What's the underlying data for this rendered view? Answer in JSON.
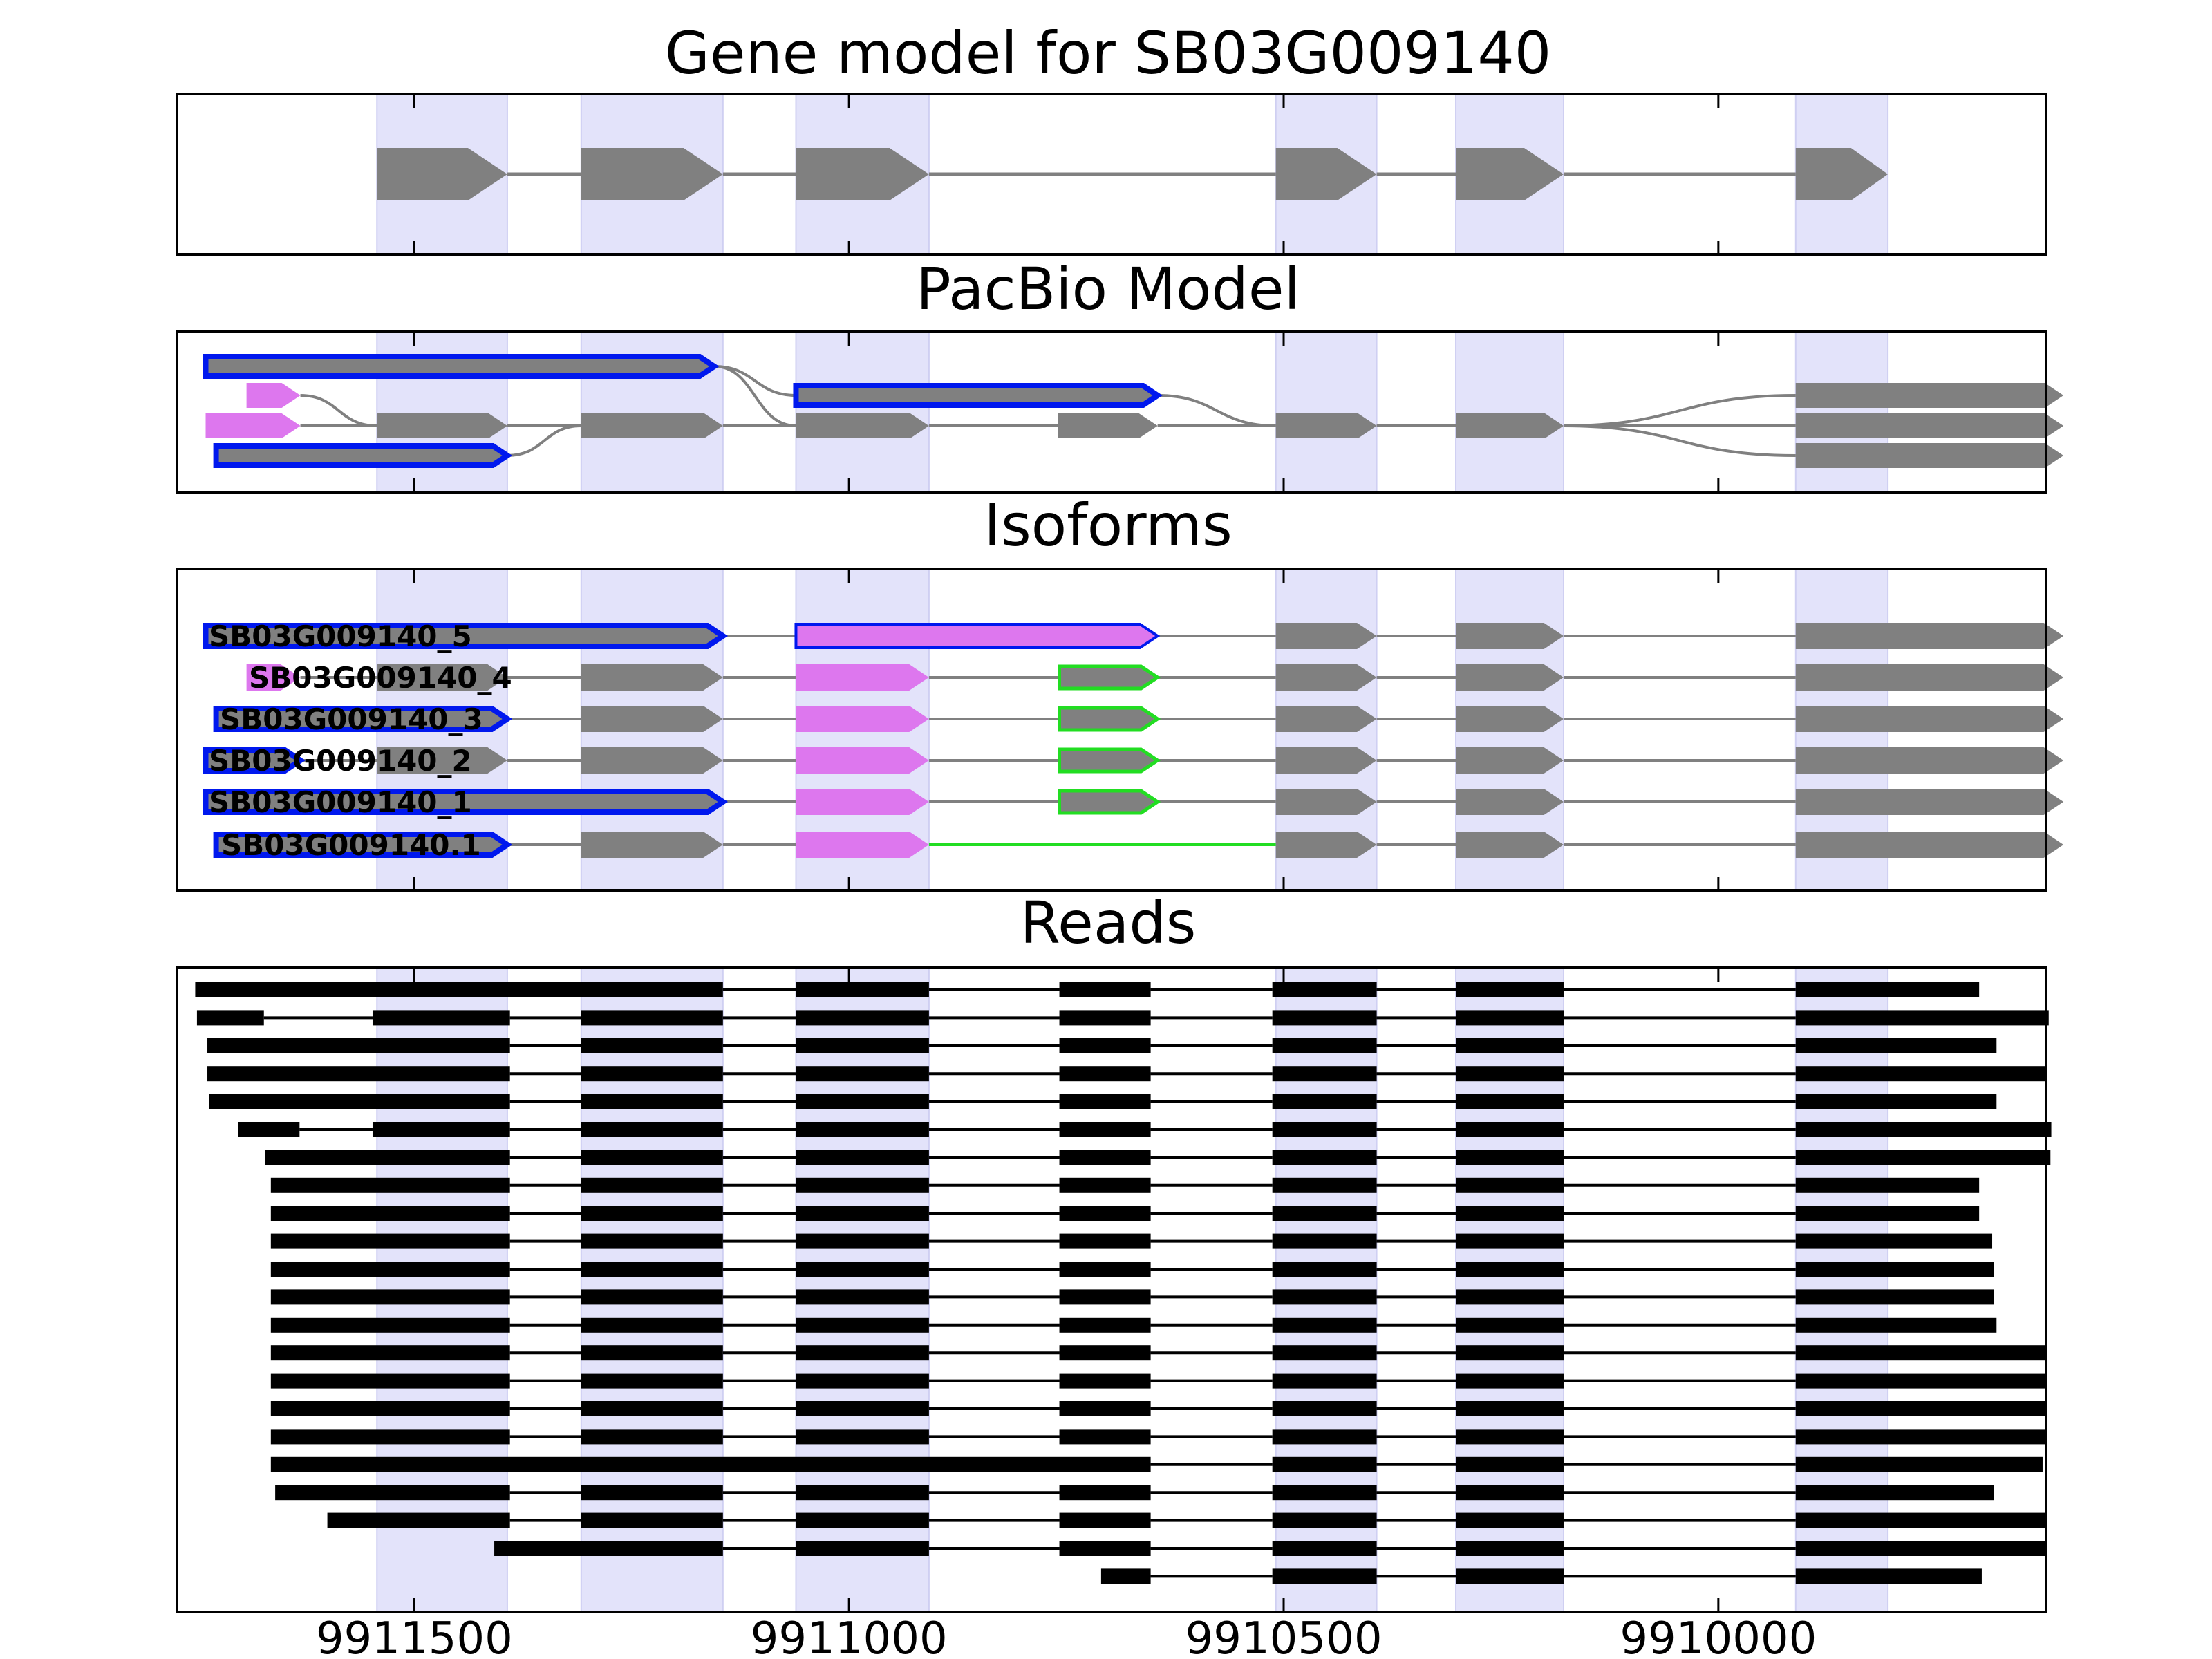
{
  "figure": {
    "title": "Gene model for SB03G009140",
    "panels": [
      {
        "id": "gene",
        "title": "Gene model for SB03G009140"
      },
      {
        "id": "pacbio",
        "title": "PacBio Model"
      },
      {
        "id": "isoforms",
        "title": "Isoforms"
      },
      {
        "id": "reads",
        "title": "Reads"
      }
    ],
    "xaxis_ticks": [
      "9911500",
      "9911000",
      "9910500",
      "9910000"
    ]
  },
  "colors": {
    "exon": "#808080",
    "exon_utr": "#dd77ee",
    "highlight_band": "#e3e3fa",
    "outline_blue": "#0018ee",
    "outline_green": "#22dd22",
    "intron": "#808080",
    "read": "#000000"
  },
  "chart_data": {
    "type": "gene_model",
    "x_axis": {
      "reversed": true,
      "range": [
        9911773,
        9909623
      ],
      "ticks": [
        9911500,
        9911000,
        9910500,
        9910000
      ]
    },
    "gene_id": "SB03G009140",
    "gene_exons": [
      [
        9911543,
        9911393
      ],
      [
        9911308,
        9911145
      ],
      [
        9911061,
        9910908
      ],
      [
        9910509,
        9910393
      ],
      [
        9910302,
        9910178
      ],
      [
        9909911,
        9909805
      ]
    ],
    "pacbio_model": {
      "rows": [
        {
          "exons": [
            [
              9911740,
              9911155
            ]
          ],
          "outlined": "blue"
        },
        {
          "exons": [
            [
              9911061,
              9910645
            ]
          ],
          "outlined": "blue"
        },
        {
          "exons": [
            [
              9911693,
              9911631
            ]
          ],
          "utr": true
        },
        {
          "exons": [
            [
              9911740,
              9911631
            ]
          ],
          "utr": true
        },
        {
          "exons": [
            [
              9911543,
              9911393
            ],
            [
              9911308,
              9911145
            ],
            [
              9911061,
              9910908
            ],
            [
              9910760,
              9910645
            ],
            [
              9910509,
              9910393
            ],
            [
              9910302,
              9910178
            ]
          ]
        },
        {
          "exons": [
            [
              9911728,
              9911393
            ]
          ],
          "outlined": "blue"
        },
        {
          "exons": [
            [
              9909911,
              9909603
            ]
          ]
        },
        {
          "exons": [
            [
              9909911,
              9909603
            ]
          ]
        },
        {
          "exons": [
            [
              9909911,
              9909603
            ]
          ]
        }
      ]
    },
    "isoforms": [
      {
        "name": "SB03G009140_5",
        "exons": [
          [
            9911740,
            9911145
          ],
          [
            9911061,
            9910645
          ],
          [
            9910509,
            9910393
          ],
          [
            9910302,
            9910178
          ],
          [
            9909911,
            9909603
          ]
        ]
      },
      {
        "name": "SB03G009140_4",
        "exons": [
          [
            9911693,
            9911631
          ],
          [
            9911543,
            9911393
          ],
          [
            9911308,
            9911145
          ],
          [
            9911061,
            9910908
          ],
          [
            9910758,
            9910645
          ],
          [
            9910509,
            9910393
          ],
          [
            9910302,
            9910178
          ],
          [
            9909911,
            9909603
          ]
        ]
      },
      {
        "name": "SB03G009140_3",
        "exons": [
          [
            9911728,
            9911393
          ],
          [
            9911308,
            9911145
          ],
          [
            9911061,
            9910908
          ],
          [
            9910758,
            9910645
          ],
          [
            9910509,
            9910393
          ],
          [
            9910302,
            9910178
          ],
          [
            9909911,
            9909603
          ]
        ]
      },
      {
        "name": "SB03G009140_2",
        "exons": [
          [
            9911740,
            9911631
          ],
          [
            9911543,
            9911393
          ],
          [
            9911308,
            9911145
          ],
          [
            9911061,
            9910908
          ],
          [
            9910758,
            9910645
          ],
          [
            9910509,
            9910393
          ],
          [
            9910302,
            9910178
          ],
          [
            9909911,
            9909603
          ]
        ]
      },
      {
        "name": "SB03G009140_1",
        "exons": [
          [
            9911740,
            9911145
          ],
          [
            9911061,
            9910908
          ],
          [
            9910758,
            9910645
          ],
          [
            9910509,
            9910393
          ],
          [
            9910302,
            9910178
          ],
          [
            9909911,
            9909603
          ]
        ]
      },
      {
        "name": "SB03G009140.1",
        "exons": [
          [
            9911728,
            9911393
          ],
          [
            9911308,
            9911145
          ],
          [
            9911061,
            9910908
          ],
          [
            9910509,
            9910393
          ],
          [
            9910302,
            9910178
          ],
          [
            9909911,
            9909603
          ]
        ]
      }
    ],
    "reads": [
      [
        [
          9911752,
          9911145
        ],
        [
          9911061,
          9910908
        ],
        [
          9910758,
          9910653
        ],
        [
          9910513,
          9910393
        ],
        [
          9910302,
          9910178
        ],
        [
          9909911,
          9909700
        ]
      ],
      [
        [
          9911750,
          9911673
        ],
        [
          9911548,
          9911390
        ],
        [
          9911308,
          9911145
        ],
        [
          9911061,
          9910908
        ],
        [
          9910758,
          9910653
        ],
        [
          9910513,
          9910393
        ],
        [
          9910302,
          9910178
        ],
        [
          9909911,
          9909620
        ]
      ],
      [
        [
          9911738,
          9911390
        ],
        [
          9911308,
          9911145
        ],
        [
          9911061,
          9910908
        ],
        [
          9910758,
          9910653
        ],
        [
          9910513,
          9910393
        ],
        [
          9910302,
          9910178
        ],
        [
          9909911,
          9909680
        ]
      ],
      [
        [
          9911738,
          9911390
        ],
        [
          9911308,
          9911145
        ],
        [
          9911061,
          9910908
        ],
        [
          9910758,
          9910653
        ],
        [
          9910513,
          9910393
        ],
        [
          9910302,
          9910178
        ],
        [
          9909911,
          9909622
        ]
      ],
      [
        [
          9911736,
          9911390
        ],
        [
          9911308,
          9911145
        ],
        [
          9911061,
          9910908
        ],
        [
          9910758,
          9910653
        ],
        [
          9910513,
          9910393
        ],
        [
          9910302,
          9910178
        ],
        [
          9909911,
          9909680
        ]
      ],
      [
        [
          9911703,
          9911632
        ],
        [
          9911548,
          9911390
        ],
        [
          9911308,
          9911145
        ],
        [
          9911061,
          9910908
        ],
        [
          9910758,
          9910653
        ],
        [
          9910513,
          9910393
        ],
        [
          9910302,
          9910178
        ],
        [
          9909911,
          9909617
        ]
      ],
      [
        [
          9911672,
          9911390
        ],
        [
          9911308,
          9911145
        ],
        [
          9911061,
          9910908
        ],
        [
          9910758,
          9910653
        ],
        [
          9910513,
          9910393
        ],
        [
          9910302,
          9910178
        ],
        [
          9909911,
          9909618
        ]
      ],
      [
        [
          9911665,
          9911390
        ],
        [
          9911308,
          9911145
        ],
        [
          9911061,
          9910908
        ],
        [
          9910758,
          9910653
        ],
        [
          9910513,
          9910393
        ],
        [
          9910302,
          9910178
        ],
        [
          9909911,
          9909700
        ]
      ],
      [
        [
          9911665,
          9911390
        ],
        [
          9911308,
          9911145
        ],
        [
          9911061,
          9910908
        ],
        [
          9910758,
          9910653
        ],
        [
          9910513,
          9910393
        ],
        [
          9910302,
          9910178
        ],
        [
          9909911,
          9909700
        ]
      ],
      [
        [
          9911665,
          9911390
        ],
        [
          9911308,
          9911145
        ],
        [
          9911061,
          9910908
        ],
        [
          9910758,
          9910653
        ],
        [
          9910513,
          9910393
        ],
        [
          9910302,
          9910178
        ],
        [
          9909911,
          9909685
        ]
      ],
      [
        [
          9911665,
          9911390
        ],
        [
          9911308,
          9911145
        ],
        [
          9911061,
          9910908
        ],
        [
          9910758,
          9910653
        ],
        [
          9910513,
          9910393
        ],
        [
          9910302,
          9910178
        ],
        [
          9909911,
          9909683
        ]
      ],
      [
        [
          9911665,
          9911390
        ],
        [
          9911308,
          9911145
        ],
        [
          9911061,
          9910908
        ],
        [
          9910758,
          9910653
        ],
        [
          9910513,
          9910393
        ],
        [
          9910302,
          9910178
        ],
        [
          9909911,
          9909683
        ]
      ],
      [
        [
          9911665,
          9911390
        ],
        [
          9911308,
          9911145
        ],
        [
          9911061,
          9910908
        ],
        [
          9910758,
          9910653
        ],
        [
          9910513,
          9910393
        ],
        [
          9910302,
          9910178
        ],
        [
          9909911,
          9909680
        ]
      ],
      [
        [
          9911665,
          9911390
        ],
        [
          9911308,
          9911145
        ],
        [
          9911061,
          9910908
        ],
        [
          9910758,
          9910653
        ],
        [
          9910513,
          9910393
        ],
        [
          9910302,
          9910178
        ],
        [
          9909911,
          9909624
        ]
      ],
      [
        [
          9911665,
          9911390
        ],
        [
          9911308,
          9911145
        ],
        [
          9911061,
          9910908
        ],
        [
          9910758,
          9910653
        ],
        [
          9910513,
          9910393
        ],
        [
          9910302,
          9910178
        ],
        [
          9909911,
          9909622
        ]
      ],
      [
        [
          9911665,
          9911390
        ],
        [
          9911308,
          9911145
        ],
        [
          9911061,
          9910908
        ],
        [
          9910758,
          9910653
        ],
        [
          9910513,
          9910393
        ],
        [
          9910302,
          9910178
        ],
        [
          9909911,
          9909622
        ]
      ],
      [
        [
          9911665,
          9911390
        ],
        [
          9911308,
          9911145
        ],
        [
          9911061,
          9910908
        ],
        [
          9910758,
          9910653
        ],
        [
          9910513,
          9910393
        ],
        [
          9910302,
          9910178
        ],
        [
          9909911,
          9909624
        ]
      ],
      [
        [
          9911665,
          9910653
        ],
        [
          9910513,
          9910393
        ],
        [
          9910302,
          9910178
        ],
        [
          9909911,
          9909627
        ]
      ],
      [
        [
          9911660,
          9911390
        ],
        [
          9911308,
          9911145
        ],
        [
          9911061,
          9910908
        ],
        [
          9910758,
          9910653
        ],
        [
          9910513,
          9910393
        ],
        [
          9910302,
          9910178
        ],
        [
          9909911,
          9909683
        ]
      ],
      [
        [
          9911600,
          9911390
        ],
        [
          9911308,
          9911145
        ],
        [
          9911061,
          9910908
        ],
        [
          9910758,
          9910653
        ],
        [
          9910513,
          9910393
        ],
        [
          9910302,
          9910178
        ],
        [
          9909911,
          9909622
        ]
      ],
      [
        [
          9911408,
          9911145
        ],
        [
          9911061,
          9910908
        ],
        [
          9910758,
          9910653
        ],
        [
          9910513,
          9910393
        ],
        [
          9910302,
          9910178
        ],
        [
          9909911,
          9909622
        ]
      ],
      [
        [
          9910710,
          9910653
        ],
        [
          9910513,
          9910393
        ],
        [
          9910302,
          9910178
        ],
        [
          9909911,
          9909697
        ]
      ]
    ]
  }
}
